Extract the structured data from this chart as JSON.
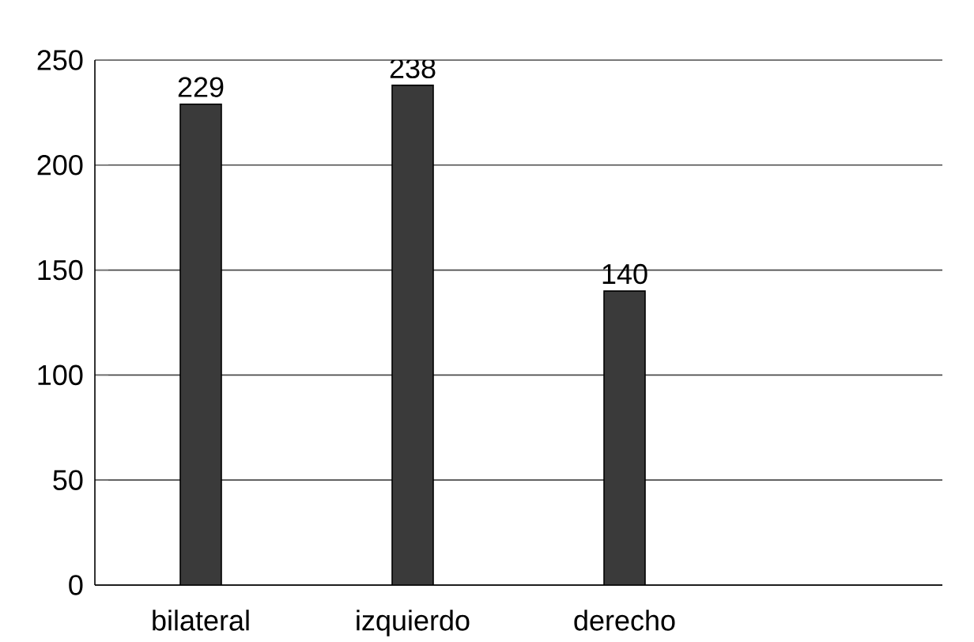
{
  "chart_data": {
    "type": "bar",
    "categories": [
      "bilateral",
      "izquierdo",
      "derecho",
      null
    ],
    "values": [
      229,
      238,
      140,
      null
    ],
    "color": "#3a3a3a",
    "ylim": [
      0,
      250
    ],
    "yticks": [
      0,
      50,
      100,
      150,
      200,
      250
    ],
    "grid": "y",
    "data_labels": true
  }
}
